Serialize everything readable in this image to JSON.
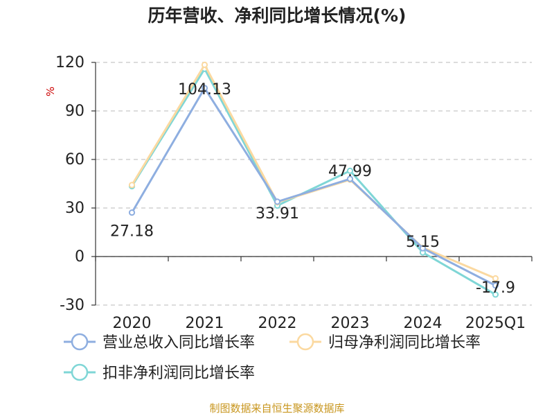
{
  "chart_data": {
    "type": "line",
    "title": "历年营收、净利同比增长情况(%)",
    "unit": "%",
    "categories": [
      "2020",
      "2021",
      "2022",
      "2023",
      "2024",
      "2025Q1"
    ],
    "ylim": [
      -30,
      120
    ],
    "yticks": [
      -30,
      0,
      30,
      60,
      90,
      120
    ],
    "grid": true,
    "legend_position": "bottom-left",
    "series": [
      {
        "name": "营业总收入同比增长率",
        "color": "#8eaee0",
        "values": [
          27.18,
          104.13,
          33.91,
          47.99,
          5.15,
          -17.9
        ],
        "labels": [
          "27.18",
          "104.13",
          "33.91",
          "47.99",
          "5.15",
          "-17.9"
        ]
      },
      {
        "name": "归母净利润同比增长率",
        "color": "#fbd9a0",
        "values": [
          44.2,
          118.5,
          33.5,
          47.5,
          5.5,
          -13.5
        ]
      },
      {
        "name": "扣非净利润同比增长率",
        "color": "#7fd6d6",
        "values": [
          43.5,
          116.0,
          31.5,
          53.0,
          2.5,
          -23.5
        ]
      }
    ]
  },
  "footer": {
    "source": "制图数据来自恒生聚源数据库"
  }
}
